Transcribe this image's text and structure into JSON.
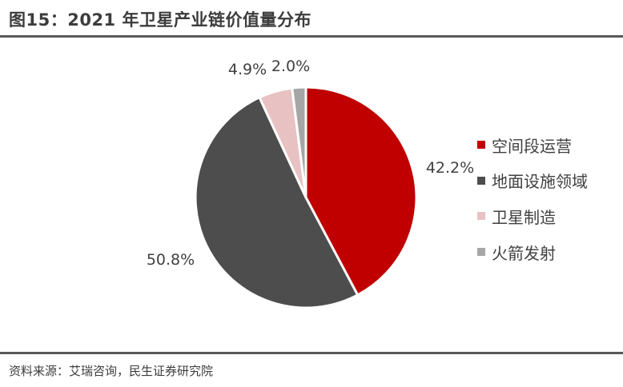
{
  "header": {
    "title": "图15：2021 年卫星产业链价值量分布"
  },
  "footer": {
    "source": "资料来源：艾瑞咨询，民生证券研究院"
  },
  "chart_data": {
    "type": "pie",
    "title": "",
    "slices": [
      {
        "name": "空间段运营",
        "value": 42.2,
        "label": "42.2%",
        "color": "#c00000"
      },
      {
        "name": "地面设施领域",
        "value": 50.8,
        "label": "50.8%",
        "color": "#4d4d4d"
      },
      {
        "name": "卫星制造",
        "value": 4.9,
        "label": "4.9%",
        "color": "#e8c2c2"
      },
      {
        "name": "火箭发射",
        "value": 2.0,
        "label": "2.0%",
        "color": "#a6a6a6"
      }
    ],
    "legend_position": "right"
  }
}
